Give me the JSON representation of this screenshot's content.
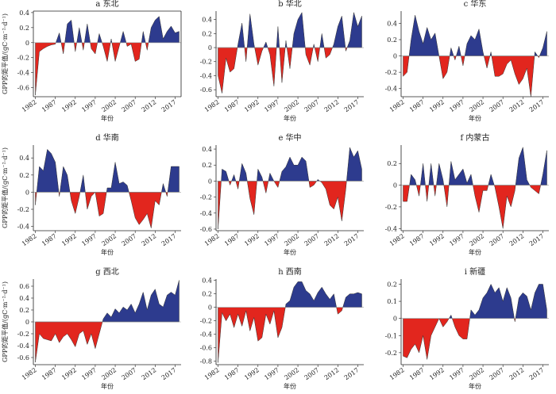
{
  "chart_data": [
    {
      "type": "area",
      "title": "a 东北",
      "y_label": "GPP的距平值/(gC·m⁻²·d⁻¹)",
      "x_label": "年份",
      "box": true,
      "x": [
        1982,
        1983,
        1984,
        1985,
        1986,
        1987,
        1988,
        1989,
        1990,
        1991,
        1992,
        1993,
        1994,
        1995,
        1996,
        1997,
        1998,
        1999,
        2000,
        2001,
        2002,
        2003,
        2004,
        2005,
        2006,
        2007,
        2008,
        2009,
        2010,
        2011,
        2012,
        2013,
        2014,
        2015,
        2016,
        2017,
        2018
      ],
      "values": [
        -0.7,
        -0.12,
        -0.08,
        -0.05,
        -0.03,
        -0.02,
        0.13,
        -0.15,
        0.25,
        0.3,
        -0.12,
        0.2,
        -0.1,
        0.25,
        -0.08,
        -0.15,
        0.12,
        -0.05,
        -0.25,
        0.05,
        -0.25,
        -0.05,
        0.15,
        -0.05,
        -0.02,
        -0.25,
        -0.22,
        0.15,
        -0.1,
        0.2,
        0.3,
        0.35,
        0.05,
        0.15,
        0.22,
        0.13,
        0.15
      ],
      "xlim": [
        1981.5,
        2018.5
      ],
      "xticks": [
        1982,
        1987,
        1992,
        1997,
        2002,
        2007,
        2012,
        2017
      ],
      "ylim": [
        -0.72,
        0.42
      ],
      "yticks": [
        -0.6,
        -0.4,
        -0.2,
        0,
        0.2,
        0.4
      ],
      "colors": {
        "positive": "#2d3b8e",
        "negative": "#e2261e"
      }
    },
    {
      "type": "area",
      "title": "b 华北",
      "x_label": "年份",
      "x": [
        1982,
        1983,
        1984,
        1985,
        1986,
        1987,
        1988,
        1989,
        1990,
        1991,
        1992,
        1993,
        1994,
        1995,
        1996,
        1997,
        1998,
        1999,
        2000,
        2001,
        2002,
        2003,
        2004,
        2005,
        2006,
        2007,
        2008,
        2009,
        2010,
        2011,
        2012,
        2013,
        2014,
        2015,
        2016,
        2017,
        2018
      ],
      "values": [
        -0.4,
        -0.65,
        -0.15,
        -0.35,
        -0.3,
        0.05,
        0.35,
        -0.2,
        0.48,
        0.05,
        -0.25,
        -0.05,
        0.08,
        -0.1,
        -0.55,
        0.3,
        -0.5,
        0.1,
        -0.3,
        0.2,
        0.4,
        0.5,
        -0.1,
        -0.25,
        0.05,
        -0.2,
        0.2,
        -0.15,
        -0.1,
        0.05,
        0.3,
        0.45,
        -0.05,
        0.1,
        0.5,
        0.3,
        0.45
      ],
      "xlim": [
        1981.5,
        2018.5
      ],
      "xticks": [
        1982,
        1987,
        1992,
        1997,
        2002,
        2007,
        2012,
        2017
      ],
      "ylim": [
        -0.7,
        0.52
      ],
      "yticks": [
        -0.6,
        -0.4,
        -0.2,
        0,
        0.2,
        0.4
      ],
      "colors": {
        "positive": "#2d3b8e",
        "negative": "#e2261e"
      }
    },
    {
      "type": "area",
      "title": "c 华东",
      "x_label": "年份",
      "x": [
        1982,
        1983,
        1984,
        1985,
        1986,
        1987,
        1988,
        1989,
        1990,
        1991,
        1992,
        1993,
        1994,
        1995,
        1996,
        1997,
        1998,
        1999,
        2000,
        2001,
        2002,
        2003,
        2004,
        2005,
        2006,
        2007,
        2008,
        2009,
        2010,
        2011,
        2012,
        2013,
        2014,
        2015,
        2016,
        2017,
        2018
      ],
      "values": [
        -0.25,
        -0.2,
        0.2,
        0.5,
        0.3,
        0.15,
        0.35,
        0.2,
        0.28,
        0,
        -0.28,
        -0.2,
        0.1,
        -0.05,
        0.12,
        -0.12,
        0.15,
        0.25,
        0.2,
        0.33,
        0.05,
        -0.15,
        0.05,
        -0.25,
        -0.25,
        -0.22,
        -0.1,
        -0.05,
        -0.22,
        -0.35,
        -0.28,
        -0.15,
        -0.5,
        0.05,
        -0.02,
        0.1,
        0.3
      ],
      "xlim": [
        1981.5,
        2018.5
      ],
      "xticks": [
        1982,
        1987,
        1992,
        1997,
        2002,
        2007,
        2012,
        2017
      ],
      "ylim": [
        -0.5,
        0.55
      ],
      "yticks": [
        -0.4,
        -0.2,
        0,
        0.2,
        0.4
      ],
      "colors": {
        "positive": "#2d3b8e",
        "negative": "#e2261e"
      }
    },
    {
      "type": "area",
      "title": "d 华南",
      "y_label": "GPP的距平值/(gC·m⁻²·d⁻¹)",
      "x_label": "年份",
      "x": [
        1982,
        1983,
        1984,
        1985,
        1986,
        1987,
        1988,
        1989,
        1990,
        1991,
        1992,
        1993,
        1994,
        1995,
        1996,
        1997,
        1998,
        1999,
        2000,
        2001,
        2002,
        2003,
        2004,
        2005,
        2006,
        2007,
        2008,
        2009,
        2010,
        2011,
        2012,
        2013,
        2014,
        2015,
        2016,
        2017,
        2018
      ],
      "values": [
        -0.15,
        0.3,
        0.25,
        0.5,
        0.45,
        0.35,
        -0.05,
        0.3,
        0.2,
        -0.1,
        -0.25,
        -0.05,
        0.2,
        -0.2,
        -0.05,
        0,
        -0.28,
        -0.25,
        0.05,
        0.05,
        0.35,
        0.1,
        0.12,
        0.08,
        -0.1,
        -0.3,
        -0.38,
        -0.32,
        -0.25,
        -0.42,
        -0.1,
        -0.15,
        0.1,
        -0.05,
        0.3,
        0.3,
        0.3
      ],
      "xlim": [
        1981.5,
        2018.5
      ],
      "xticks": [
        1982,
        1987,
        1992,
        1997,
        2002,
        2007,
        2012,
        2017
      ],
      "ylim": [
        -0.45,
        0.55
      ],
      "yticks": [
        -0.4,
        -0.2,
        0,
        0.2,
        0.4
      ],
      "colors": {
        "positive": "#2d3b8e",
        "negative": "#e2261e"
      }
    },
    {
      "type": "area",
      "title": "e 华中",
      "x_label": "年份",
      "x": [
        1982,
        1983,
        1984,
        1985,
        1986,
        1987,
        1988,
        1989,
        1990,
        1991,
        1992,
        1993,
        1994,
        1995,
        1996,
        1997,
        1998,
        1999,
        2000,
        2001,
        2002,
        2003,
        2004,
        2005,
        2006,
        2007,
        2008,
        2009,
        2010,
        2011,
        2012,
        2013,
        2014,
        2015,
        2016,
        2017,
        2018
      ],
      "values": [
        -0.6,
        0.15,
        0.12,
        -0.05,
        0.08,
        -0.1,
        0.22,
        0.1,
        -0.22,
        -0.42,
        0.15,
        0.05,
        -0.15,
        0.1,
        0,
        -0.08,
        0.12,
        0.18,
        0.3,
        0.2,
        0.2,
        0.3,
        0.25,
        -0.08,
        -0.05,
        0.02,
        -0.02,
        -0.1,
        -0.3,
        -0.35,
        -0.2,
        -0.5,
        -0.1,
        0.42,
        0.3,
        0.38,
        0.15
      ],
      "xlim": [
        1981.5,
        2018.5
      ],
      "xticks": [
        1982,
        1987,
        1992,
        1997,
        2002,
        2007,
        2012,
        2017
      ],
      "ylim": [
        -0.62,
        0.45
      ],
      "yticks": [
        -0.6,
        -0.4,
        -0.2,
        0,
        0.2,
        0.4
      ],
      "colors": {
        "positive": "#2d3b8e",
        "negative": "#e2261e"
      }
    },
    {
      "type": "area",
      "title": "f 内蒙古",
      "x_label": "年份",
      "x": [
        1982,
        1983,
        1984,
        1985,
        1986,
        1987,
        1988,
        1989,
        1990,
        1991,
        1992,
        1993,
        1994,
        1995,
        1996,
        1997,
        1998,
        1999,
        2000,
        2001,
        2002,
        2003,
        2004,
        2005,
        2006,
        2007,
        2008,
        2009,
        2010,
        2011,
        2012,
        2013,
        2014,
        2015,
        2016,
        2017,
        2018
      ],
      "values": [
        -0.15,
        -0.15,
        0.1,
        0.05,
        -0.1,
        0.2,
        -0.15,
        0.2,
        -0.1,
        0.2,
        0.05,
        -0.2,
        0.22,
        0.05,
        0.1,
        0.15,
        0.02,
        0.1,
        -0.1,
        -0.25,
        -0.05,
        -0.05,
        0.1,
        -0.02,
        -0.2,
        -0.4,
        -0.1,
        -0.2,
        -0.05,
        0.25,
        0.35,
        0.05,
        -0.02,
        -0.05,
        -0.08,
        0.1,
        0.32
      ],
      "xlim": [
        1981.5,
        2018.5
      ],
      "xticks": [
        1982,
        1987,
        1992,
        1997,
        2002,
        2007,
        2012,
        2017
      ],
      "ylim": [
        -0.42,
        0.37
      ],
      "yticks": [
        -0.4,
        -0.2,
        0,
        0.2
      ],
      "colors": {
        "positive": "#2d3b8e",
        "negative": "#e2261e"
      }
    },
    {
      "type": "area",
      "title": "g 西北",
      "y_label": "GPP的距平值/(gC·m⁻²·d⁻¹)",
      "x_label": "年份",
      "x": [
        1982,
        1983,
        1984,
        1985,
        1986,
        1987,
        1988,
        1989,
        1990,
        1991,
        1992,
        1993,
        1994,
        1995,
        1996,
        1997,
        1998,
        1999,
        2000,
        2001,
        2002,
        2003,
        2004,
        2005,
        2006,
        2007,
        2008,
        2009,
        2010,
        2011,
        2012,
        2013,
        2014,
        2015,
        2016,
        2017,
        2018
      ],
      "values": [
        -0.68,
        -0.2,
        -0.28,
        -0.3,
        -0.32,
        -0.2,
        -0.35,
        -0.25,
        -0.2,
        -0.3,
        -0.42,
        -0.2,
        -0.15,
        -0.38,
        -0.2,
        -0.45,
        -0.2,
        0.05,
        0.15,
        0.08,
        0.22,
        0.15,
        0.25,
        0.2,
        0.3,
        0.15,
        0.3,
        0.5,
        0.2,
        0.45,
        0.55,
        0.3,
        0.25,
        0.45,
        0.5,
        0.45,
        0.7
      ],
      "xlim": [
        1981.5,
        2018.5
      ],
      "xticks": [
        1982,
        1987,
        1992,
        1997,
        2002,
        2007,
        2012,
        2017
      ],
      "ylim": [
        -0.72,
        0.72
      ],
      "yticks": [
        -0.6,
        -0.4,
        -0.2,
        0,
        0.2,
        0.4,
        0.6
      ],
      "colors": {
        "positive": "#2d3b8e",
        "negative": "#e2261e"
      }
    },
    {
      "type": "area",
      "title": "h 西南",
      "x_label": "年份",
      "x": [
        1982,
        1983,
        1984,
        1985,
        1986,
        1987,
        1988,
        1989,
        1990,
        1991,
        1992,
        1993,
        1994,
        1995,
        1996,
        1997,
        1998,
        1999,
        2000,
        2001,
        2002,
        2003,
        2004,
        2005,
        2006,
        2007,
        2008,
        2009,
        2010,
        2011,
        2012,
        2013,
        2014,
        2015,
        2016,
        2017,
        2018
      ],
      "values": [
        -0.82,
        -0.08,
        -0.2,
        -0.1,
        -0.3,
        -0.1,
        -0.28,
        -0.05,
        -0.35,
        -0.15,
        -0.5,
        -0.45,
        -0.1,
        -0.25,
        -0.05,
        -0.45,
        -0.3,
        0.05,
        0.1,
        0.3,
        0.38,
        0.38,
        0.25,
        0.2,
        0.1,
        0.22,
        0.3,
        0.2,
        0.12,
        0.2,
        -0.1,
        -0.05,
        0.15,
        0.2,
        0.2,
        0.22,
        0.2
      ],
      "xlim": [
        1981.5,
        2018.5
      ],
      "xticks": [
        1982,
        1987,
        1992,
        1997,
        2002,
        2007,
        2012,
        2017
      ],
      "ylim": [
        -0.85,
        0.42
      ],
      "yticks": [
        -0.8,
        -0.6,
        -0.4,
        -0.2,
        0,
        0.2,
        0.4
      ],
      "colors": {
        "positive": "#2d3b8e",
        "negative": "#e2261e"
      }
    },
    {
      "type": "area",
      "title": "i 新疆",
      "x_label": "年份",
      "x": [
        1982,
        1983,
        1984,
        1985,
        1986,
        1987,
        1988,
        1989,
        1990,
        1991,
        1992,
        1993,
        1994,
        1995,
        1996,
        1997,
        1998,
        1999,
        2000,
        2001,
        2002,
        2003,
        2004,
        2005,
        2006,
        2007,
        2008,
        2009,
        2010,
        2011,
        2012,
        2013,
        2014,
        2015,
        2016,
        2017,
        2018
      ],
      "values": [
        -0.22,
        -0.23,
        -0.18,
        -0.15,
        -0.2,
        -0.1,
        -0.24,
        -0.1,
        -0.05,
        0,
        -0.05,
        -0.02,
        0.02,
        -0.05,
        -0.1,
        -0.12,
        -0.12,
        0.05,
        0.02,
        0.05,
        0.12,
        0.15,
        0.2,
        0.15,
        0.18,
        0.1,
        0.18,
        0.12,
        -0.02,
        0.12,
        0.15,
        0.13,
        0.05,
        0.15,
        0.2,
        0.2,
        0.05
      ],
      "xlim": [
        1981.5,
        2018.5
      ],
      "xticks": [
        1982,
        1987,
        1992,
        1997,
        2002,
        2007,
        2012,
        2017
      ],
      "ylim": [
        -0.27,
        0.23
      ],
      "yticks": [
        -0.2,
        -0.1,
        0,
        0.1,
        0.2
      ],
      "colors": {
        "positive": "#2d3b8e",
        "negative": "#e2261e"
      }
    }
  ]
}
